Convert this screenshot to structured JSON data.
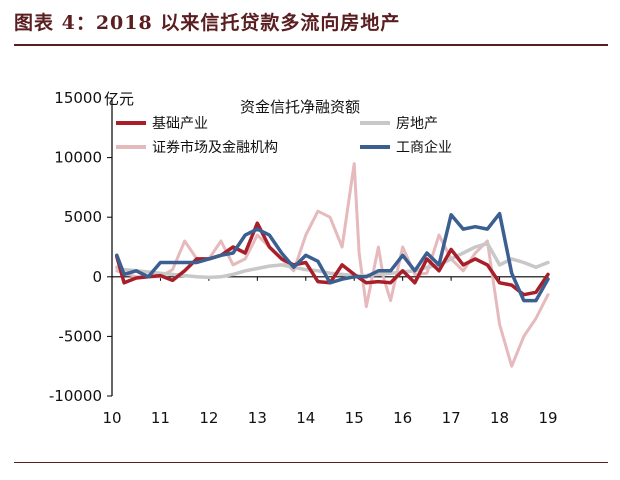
{
  "figure_title": "图表 4：2018 以来信托贷款多流向房地产",
  "chart_data": {
    "type": "line",
    "title": "资金信托净融资额",
    "ylabel": "亿元",
    "xlabel": "",
    "ylim": [
      -10000,
      15000
    ],
    "yticks": [
      15000,
      10000,
      5000,
      0,
      -5000,
      -10000
    ],
    "xticks": [
      10,
      11,
      12,
      13,
      14,
      15,
      16,
      17,
      18,
      19
    ],
    "xlim": [
      10,
      19
    ],
    "grid": false,
    "legend_position": "top",
    "series": [
      {
        "name": "证券市场及金融机构",
        "color": "#e6b9bd",
        "width": 3,
        "x": [
          10.1,
          10.25,
          10.5,
          10.75,
          11.0,
          11.25,
          11.5,
          11.75,
          12.0,
          12.25,
          12.5,
          12.75,
          13.0,
          13.25,
          13.5,
          13.75,
          14.0,
          14.25,
          14.5,
          14.75,
          15.0,
          15.1,
          15.25,
          15.5,
          15.6,
          15.75,
          16.0,
          16.25,
          16.5,
          16.75,
          17.0,
          17.25,
          17.5,
          17.75,
          18.0,
          18.25,
          18.5,
          18.75,
          19.0
        ],
        "y": [
          500,
          300,
          0,
          0,
          0,
          600,
          3000,
          1500,
          1500,
          3000,
          1000,
          1500,
          3500,
          2500,
          1500,
          500,
          3500,
          5500,
          5000,
          2500,
          9500,
          2000,
          -2500,
          2500,
          0,
          -2000,
          2500,
          200,
          300,
          3500,
          1500,
          500,
          2000,
          3000,
          -4000,
          -7500,
          -5000,
          -3500,
          -1500
        ]
      },
      {
        "name": "房地产",
        "color": "#c8c8c8",
        "width": 3.5,
        "x": [
          10.1,
          10.25,
          10.5,
          10.75,
          11.0,
          11.25,
          11.5,
          11.75,
          12.0,
          12.25,
          12.5,
          12.75,
          13.0,
          13.25,
          13.5,
          13.75,
          14.0,
          14.25,
          14.5,
          14.75,
          15.0,
          15.25,
          15.5,
          15.75,
          16.0,
          16.25,
          16.5,
          16.75,
          17.0,
          17.25,
          17.5,
          17.75,
          18.0,
          18.25,
          18.5,
          18.75,
          19.0
        ],
        "y": [
          800,
          600,
          500,
          400,
          300,
          200,
          100,
          0,
          -50,
          0,
          200,
          500,
          700,
          900,
          1000,
          800,
          600,
          500,
          300,
          200,
          100,
          100,
          200,
          300,
          400,
          500,
          800,
          1000,
          1500,
          2000,
          2500,
          2800,
          1000,
          1500,
          1200,
          800,
          1200
        ]
      },
      {
        "name": "基础产业",
        "color": "#a81f2a",
        "width": 3.5,
        "x": [
          10.1,
          10.25,
          10.5,
          10.75,
          11.0,
          11.25,
          11.5,
          11.75,
          12.0,
          12.25,
          12.5,
          12.75,
          13.0,
          13.25,
          13.5,
          13.75,
          14.0,
          14.25,
          14.5,
          14.75,
          15.0,
          15.25,
          15.5,
          15.75,
          16.0,
          16.25,
          16.5,
          16.75,
          17.0,
          17.25,
          17.5,
          17.75,
          18.0,
          18.25,
          18.5,
          18.75,
          19.0
        ],
        "y": [
          1700,
          -500,
          -100,
          0,
          100,
          -300,
          500,
          1500,
          1500,
          1800,
          2500,
          2000,
          4500,
          2500,
          1500,
          1000,
          1200,
          -400,
          -500,
          1000,
          200,
          -500,
          -400,
          -500,
          500,
          -500,
          1500,
          500,
          2300,
          1000,
          1500,
          1000,
          -500,
          -700,
          -1500,
          -1300,
          200
        ]
      },
      {
        "name": "工商企业",
        "color": "#3b5f91",
        "width": 3.5,
        "x": [
          10.1,
          10.25,
          10.5,
          10.75,
          11.0,
          11.25,
          11.5,
          11.75,
          12.0,
          12.25,
          12.5,
          12.75,
          13.0,
          13.25,
          13.5,
          13.75,
          14.0,
          14.25,
          14.5,
          14.75,
          15.0,
          15.25,
          15.5,
          15.75,
          16.0,
          16.25,
          16.5,
          16.75,
          17.0,
          17.25,
          17.5,
          17.75,
          18.0,
          18.25,
          18.5,
          18.75,
          19.0
        ],
        "y": [
          1800,
          200,
          500,
          0,
          1200,
          1200,
          1200,
          1200,
          1500,
          1800,
          2000,
          3500,
          4000,
          3500,
          2000,
          800,
          1800,
          1300,
          -500,
          -200,
          0,
          0,
          500,
          500,
          1800,
          500,
          2000,
          1000,
          5200,
          4000,
          4200,
          4000,
          5300,
          300,
          -2000,
          -2000,
          -200
        ]
      }
    ],
    "legend_order": [
      "基础产业",
      "房地产",
      "证券市场及金融机构",
      "工商企业"
    ]
  }
}
